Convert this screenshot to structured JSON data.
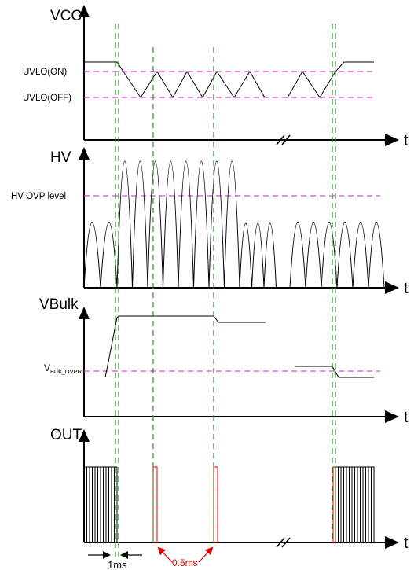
{
  "panels": {
    "vcc": {
      "title": "VCC",
      "axis_label": "t",
      "levels": [
        {
          "label": "UVLO(ON)"
        },
        {
          "label": "UVLO(OFF)"
        }
      ]
    },
    "hv": {
      "title": "HV",
      "axis_label": "t",
      "levels": [
        {
          "label": "HV OVP  level"
        }
      ]
    },
    "vbulk": {
      "title": "VBulk",
      "axis_label": "t",
      "level": {
        "main": "V",
        "sub": "Bulk_OVPR"
      }
    },
    "out": {
      "title": "OUT",
      "axis_label": "t"
    }
  },
  "annotations": {
    "delay_1": "1ms",
    "delay_2": "0.5ms"
  },
  "colors": {
    "trace": "#000000",
    "threshold": "#e040e0",
    "marker": "#2e8b2e",
    "highlight": "#e00000"
  }
}
